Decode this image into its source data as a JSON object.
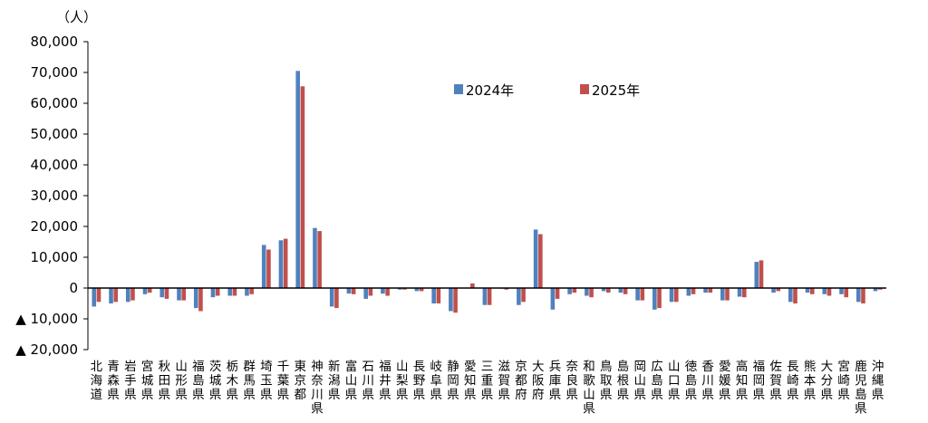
{
  "chart_data": {
    "type": "bar",
    "ylabel": "（人）",
    "ylim": [
      -20000,
      80000
    ],
    "yticks": [
      {
        "value": 80000,
        "label": "80,000"
      },
      {
        "value": 70000,
        "label": "70,000"
      },
      {
        "value": 60000,
        "label": "60,000"
      },
      {
        "value": 50000,
        "label": "50,000"
      },
      {
        "value": 40000,
        "label": "40,000"
      },
      {
        "value": 30000,
        "label": "30,000"
      },
      {
        "value": 20000,
        "label": "20,000"
      },
      {
        "value": 10000,
        "label": "10,000"
      },
      {
        "value": 0,
        "label": "0"
      },
      {
        "value": -10000,
        "label": "▲ 10,000"
      },
      {
        "value": -20000,
        "label": "▲ 20,000"
      }
    ],
    "grid": false,
    "legend_position": "top-right",
    "categories": [
      "北海道",
      "青森県",
      "岩手県",
      "宮城県",
      "秋田県",
      "山形県",
      "福島県",
      "茨城県",
      "栃木県",
      "群馬県",
      "埼玉県",
      "千葉県",
      "東京都",
      "神奈川県",
      "新潟県",
      "富山県",
      "石川県",
      "福井県",
      "山梨県",
      "長野県",
      "岐阜県",
      "静岡県",
      "愛知県",
      "三重県",
      "滋賀県",
      "京都府",
      "大阪府",
      "兵庫県",
      "奈良県",
      "和歌山県",
      "鳥取県",
      "島根県",
      "岡山県",
      "広島県",
      "山口県",
      "徳島県",
      "香川県",
      "愛媛県",
      "高知県",
      "福岡県",
      "佐賀県",
      "長崎県",
      "熊本県",
      "大分県",
      "宮崎県",
      "鹿児島県",
      "沖縄県"
    ],
    "series": [
      {
        "name": "2024年",
        "color": "#4f81bd",
        "values": [
          -6000,
          -5000,
          -4500,
          -2000,
          -3000,
          -4000,
          -6500,
          -3000,
          -2500,
          -2500,
          14000,
          15500,
          70500,
          19500,
          -6000,
          -1800,
          -3500,
          -1800,
          -500,
          -1000,
          -5000,
          -7500,
          0,
          -5500,
          -200,
          -5500,
          19000,
          -7000,
          -2000,
          -2500,
          -1000,
          -1500,
          -4000,
          -7000,
          -4500,
          -2500,
          -1500,
          -4000,
          -2800,
          8500,
          -1500,
          -4500,
          -1500,
          -2000,
          -2000,
          -4500,
          -1000
        ]
      },
      {
        "name": "2025年",
        "color": "#c0504d",
        "values": [
          -4500,
          -4500,
          -4000,
          -1500,
          -3500,
          -4000,
          -7500,
          -2500,
          -2500,
          -2000,
          12500,
          16000,
          65500,
          18500,
          -6500,
          -2000,
          -2500,
          -2500,
          -500,
          -1000,
          -5000,
          -8000,
          1500,
          -5500,
          -500,
          -4500,
          17500,
          -3500,
          -1500,
          -3000,
          -1500,
          -2000,
          -4000,
          -6500,
          -4500,
          -2000,
          -1500,
          -4000,
          -3000,
          9000,
          -1000,
          -5000,
          -2000,
          -2500,
          -3000,
          -5000,
          -500
        ]
      }
    ]
  }
}
